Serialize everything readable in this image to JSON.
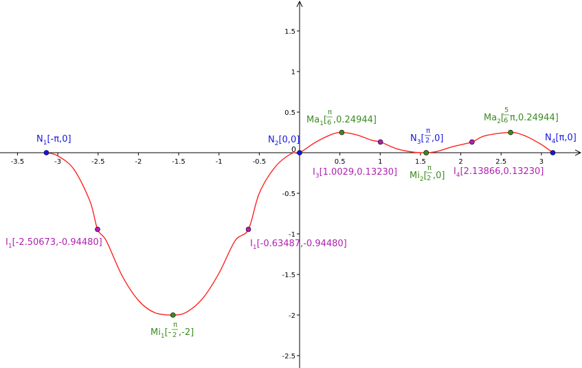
{
  "chart_data": {
    "type": "line",
    "title": "",
    "xlabel": "",
    "ylabel": "",
    "xlim": [
      -3.6,
      3.6
    ],
    "ylim": [
      -2.65,
      1.85
    ],
    "x_ticks": [
      -3.5,
      -3,
      -2.5,
      -2,
      -1.5,
      -1,
      -0.5,
      0,
      0.5,
      1,
      1.5,
      2,
      2.5,
      3
    ],
    "x_tick_labels": [
      "-3.5",
      "-3",
      "-2.5",
      "-2",
      "-1.5",
      "-1",
      "-0.5",
      "0",
      "0.5",
      "1",
      "1.5",
      "2",
      "2.5",
      "3"
    ],
    "y_ticks": [
      -2.5,
      -2,
      -1.5,
      -1,
      -0.5,
      0.5,
      1,
      1.5
    ],
    "y_tick_labels": [
      "-2.5",
      "-2",
      "-1.5",
      "-1",
      "-0.5",
      "0.5",
      "1",
      "1.5"
    ],
    "grid": false,
    "curve": {
      "color": "#ff2020",
      "x_range": [
        -3.14159,
        3.14159
      ],
      "points": [
        [
          -3.1416,
          0
        ],
        [
          -3.0,
          -0.0394
        ],
        [
          -2.8,
          -0.2052
        ],
        [
          -2.6,
          -0.6003
        ],
        [
          -2.5067,
          -0.9448
        ],
        [
          -2.4,
          -1.082
        ],
        [
          -2.2,
          -1.5196
        ],
        [
          -2.0,
          -1.8187
        ],
        [
          -1.8,
          -1.9696
        ],
        [
          -1.5708,
          -2.0
        ],
        [
          -1.4,
          -1.9629
        ],
        [
          -1.2,
          -1.7928
        ],
        [
          -1.0,
          -1.4848
        ],
        [
          -0.8,
          -1.0843
        ],
        [
          -0.6349,
          -0.9448
        ],
        [
          -0.5,
          -0.4984
        ],
        [
          -0.3,
          -0.1719
        ],
        [
          -0.1,
          -0.0099
        ],
        [
          0,
          0
        ],
        [
          0.2,
          0.1302
        ],
        [
          0.4,
          0.2262
        ],
        [
          0.5236,
          0.2494
        ],
        [
          0.7,
          0.2219
        ],
        [
          0.9,
          0.1518
        ],
        [
          1.0029,
          0.1323
        ],
        [
          1.2,
          0.0497
        ],
        [
          1.4,
          0.0085
        ],
        [
          1.5708,
          0
        ],
        [
          1.7,
          0.0145
        ],
        [
          1.9,
          0.0742
        ],
        [
          2.1387,
          0.1323
        ],
        [
          2.3,
          0.2087
        ],
        [
          2.618,
          0.2494
        ],
        [
          2.8,
          0.2069
        ],
        [
          3.0,
          0.1006
        ],
        [
          3.1416,
          0
        ]
      ]
    },
    "points": [
      {
        "id": "N1",
        "x": -3.14159,
        "y": 0,
        "color": "#1515e0",
        "label": "N₁[-π,0]"
      },
      {
        "id": "N2",
        "x": 0,
        "y": 0,
        "color": "#1515e0",
        "label": "N₂[0,0]"
      },
      {
        "id": "N3",
        "x": 1.5708,
        "y": 0,
        "color": "#1515e0",
        "label": "N₃[π/2,0]"
      },
      {
        "id": "N4",
        "x": 3.14159,
        "y": 0,
        "color": "#1515e0",
        "label": "N₄[π,0]"
      },
      {
        "id": "Mi1",
        "x": -1.5708,
        "y": -2,
        "color": "#3a8a20",
        "label": "Mi₁[-π/2,-2]"
      },
      {
        "id": "Mi2",
        "x": 1.5708,
        "y": 0,
        "color": "#3a8a20",
        "label": "Mi₂[π/2,0]"
      },
      {
        "id": "Ma1",
        "x": 0.5236,
        "y": 0.24944,
        "color": "#3a8a20",
        "label": "Ma₁[π/6,0.24944]"
      },
      {
        "id": "Ma2",
        "x": 2.618,
        "y": 0.24944,
        "color": "#3a8a20",
        "label": "Ma₂[5/6π,0.24944]"
      },
      {
        "id": "I1a",
        "x": -2.50673,
        "y": -0.9448,
        "color": "#b020b0",
        "label": "I₁[-2.50673,-0.94480]"
      },
      {
        "id": "I1b",
        "x": -0.63487,
        "y": -0.9448,
        "color": "#b020b0",
        "label": "I₁[-0.63487,-0.94480]"
      },
      {
        "id": "I3",
        "x": 1.0029,
        "y": 0.1323,
        "color": "#b020b0",
        "label": "I₃[1.0029,0.13230]"
      },
      {
        "id": "I4",
        "x": 2.13866,
        "y": 0.1323,
        "color": "#b020b0",
        "label": "I₄[2.13866,0.13230]"
      }
    ]
  },
  "labels": {
    "n1_main": "N",
    "n1_sub": "1",
    "n1_tail": "[-π,0]",
    "n2_main": "N",
    "n2_sub": "2",
    "n2_tail": "[0,0]",
    "n3_main": "N",
    "n3_sub": "3",
    "n3_open": "[",
    "n3_num": "π",
    "n3_den": "2",
    "n3_close": ",0]",
    "n4_main": "N",
    "n4_sub": "4",
    "n4_tail": "[π,0]",
    "ma1_main": "Ma",
    "ma1_sub": "1",
    "ma1_open": "[",
    "ma1_num": "π",
    "ma1_den": "6",
    "ma1_close": ",0.24944]",
    "ma2_main": "Ma",
    "ma2_sub": "2",
    "ma2_open": "[",
    "ma2_num": "5",
    "ma2_den": "6",
    "ma2_close": "π,0.24944]",
    "mi1_main": "Mi",
    "mi1_sub": "1",
    "mi1_open": "[-",
    "mi1_num": "π",
    "mi1_den": "2",
    "mi1_close": ",-2]",
    "mi2_main": "Mi",
    "mi2_sub": "2",
    "mi2_open": "[",
    "mi2_num": "π",
    "mi2_den": "2",
    "mi2_close": ",0]",
    "i1a_main": "I",
    "i1a_sub": "1",
    "i1a_tail": "[-2.50673,-0.94480]",
    "i1b_main": "I",
    "i1b_sub": "1",
    "i1b_tail": "[-0.63487,-0.94480]",
    "i3_main": "I",
    "i3_sub": "3",
    "i3_tail": "[1.0029,0.13230]",
    "i4_main": "I",
    "i4_sub": "4",
    "i4_tail": "[2.13866,0.13230]",
    "origin_zero": "0"
  },
  "colors": {
    "axis": "#000000",
    "curve": "#ff2020",
    "blue": "#1515e0",
    "green": "#3a8a20",
    "magenta": "#b020b0"
  }
}
